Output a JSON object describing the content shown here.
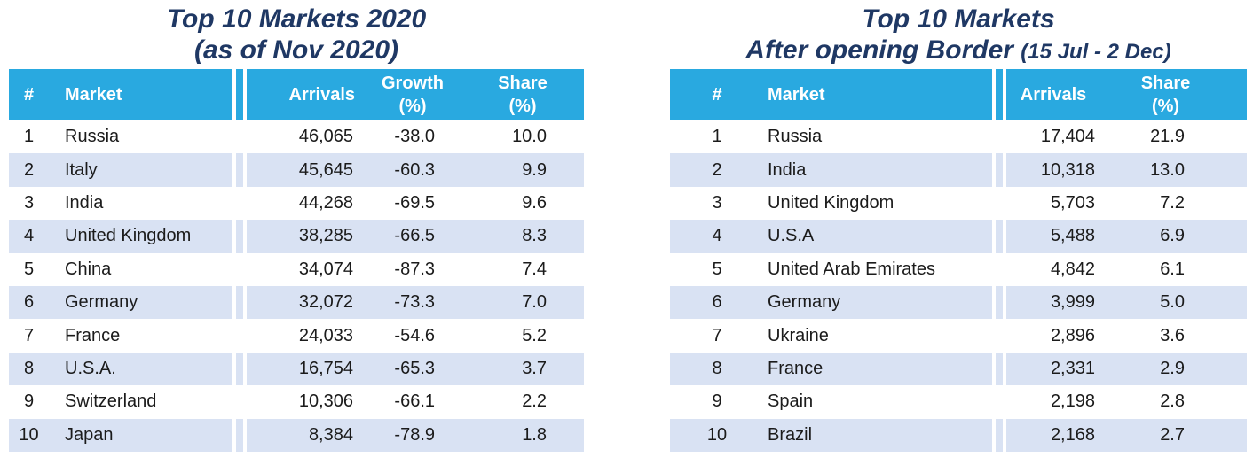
{
  "colors": {
    "header_bg": "#29A9E0",
    "alt_row_bg": "#D9E2F3",
    "title_text": "#1F3864",
    "header_text": "#FFFFFF",
    "body_text": "#1B1B1B"
  },
  "left": {
    "title_line1": "Top 10 Markets 2020",
    "title_line2": "(as of Nov 2020)",
    "header": {
      "rank": "#",
      "market": "Market",
      "arrivals": "Arrivals",
      "growth_l1": "Growth",
      "growth_l2": "(%)",
      "share_l1": "Share",
      "share_l2": "(%)"
    }
  },
  "right": {
    "title_line1": "Top 10 Markets",
    "title_line2_main": "After opening Border",
    "title_line2_note": "(15 Jul - 2 Dec)",
    "header": {
      "rank": "#",
      "market": "Market",
      "arrivals": "Arrivals",
      "share_l1": "Share",
      "share_l2": "(%)"
    }
  },
  "chart_data": [
    {
      "type": "table",
      "title": "Top 10 Markets 2020 (as of Nov 2020)",
      "columns": [
        "#",
        "Market",
        "Arrivals",
        "Growth (%)",
        "Share (%)"
      ],
      "rows": [
        [
          1,
          "Russia",
          46065,
          -38.0,
          10.0
        ],
        [
          2,
          "Italy",
          45645,
          -60.3,
          9.9
        ],
        [
          3,
          "India",
          44268,
          -69.5,
          9.6
        ],
        [
          4,
          "United Kingdom",
          38285,
          -66.5,
          8.3
        ],
        [
          5,
          "China",
          34074,
          -87.3,
          7.4
        ],
        [
          6,
          "Germany",
          32072,
          -73.3,
          7.0
        ],
        [
          7,
          "France",
          24033,
          -54.6,
          5.2
        ],
        [
          8,
          "U.S.A.",
          16754,
          -65.3,
          3.7
        ],
        [
          9,
          "Switzerland",
          10306,
          -66.1,
          2.2
        ],
        [
          10,
          "Japan",
          8384,
          -78.9,
          1.8
        ]
      ]
    },
    {
      "type": "table",
      "title": "Top 10 Markets After opening Border (15 Jul - 2 Dec)",
      "columns": [
        "#",
        "Market",
        "Arrivals",
        "Share (%)"
      ],
      "rows": [
        [
          1,
          "Russia",
          17404,
          21.9
        ],
        [
          2,
          "India",
          10318,
          13.0
        ],
        [
          3,
          "United Kingdom",
          5703,
          7.2
        ],
        [
          4,
          "U.S.A",
          5488,
          6.9
        ],
        [
          5,
          "United Arab Emirates",
          4842,
          6.1
        ],
        [
          6,
          "Germany",
          3999,
          5.0
        ],
        [
          7,
          "Ukraine",
          2896,
          3.6
        ],
        [
          8,
          "France",
          2331,
          2.9
        ],
        [
          9,
          "Spain",
          2198,
          2.8
        ],
        [
          10,
          "Brazil",
          2168,
          2.7
        ]
      ]
    }
  ]
}
